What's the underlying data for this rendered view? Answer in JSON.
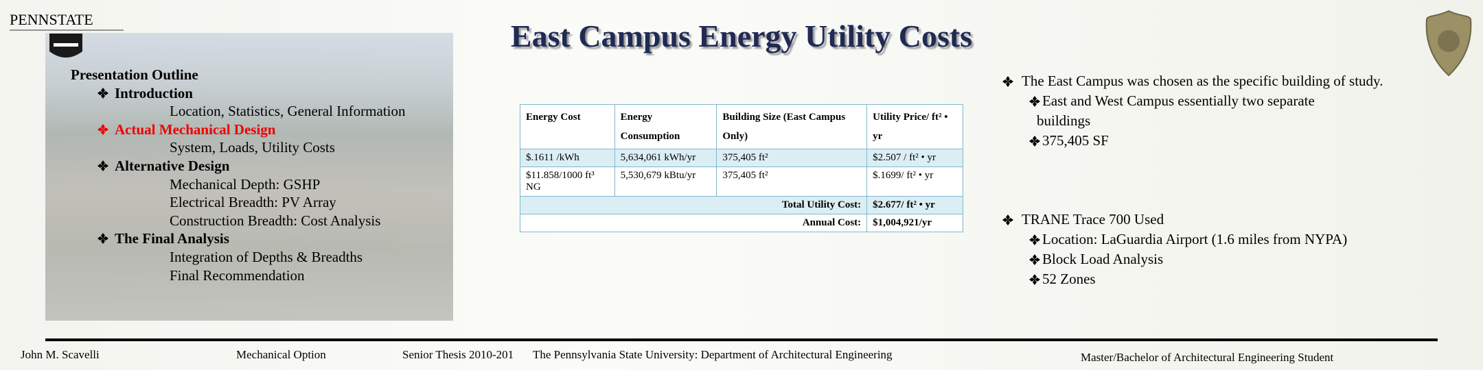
{
  "header": {
    "logo": "PENNSTATE",
    "title": "East Campus Energy Utility Costs"
  },
  "outline": {
    "heading": "Presentation Outline",
    "active_section": 1,
    "sections": [
      {
        "title": "Introduction",
        "items": [
          "Location, Statistics, General Information"
        ]
      },
      {
        "title": "Actual Mechanical Design",
        "items": [
          "System, Loads, Utility Costs"
        ]
      },
      {
        "title": "Alternative Design",
        "items": [
          "Mechanical Depth: GSHP",
          "Electrical Breadth: PV Array",
          "Construction Breadth: Cost Analysis"
        ]
      },
      {
        "title": "The Final Analysis",
        "items": [
          "Integration of Depths & Breadths",
          "Final Recommendation"
        ]
      }
    ]
  },
  "table": {
    "header": [
      "Energy Cost",
      "Energy Consumption",
      "Building Size (East Campus Only)",
      "Utility Price/ ft² • yr"
    ],
    "rows": [
      [
        "$.1611 /kWh",
        "5,634,061 kWh/yr",
        "375,405 ft²",
        "$2.507 / ft² • yr"
      ],
      [
        "$11.858/1000 ft³ NG",
        "5,530,679 kBtu/yr",
        "375,405 ft²",
        "$.1699/ ft² • yr"
      ]
    ],
    "totals": [
      [
        "Total Utility Cost:",
        "$2.677/ ft² • yr"
      ],
      [
        "Annual Cost:",
        "$1,004,921/yr"
      ]
    ]
  },
  "notes": [
    {
      "text": "The East Campus was chosen as the specific building of study.",
      "sub": [
        "East and West Campus essentially two separate buildings",
        "375,405 SF"
      ]
    },
    {
      "text": "TRANE Trace 700 Used",
      "sub": [
        "Location: LaGuardia Airport (1.6 miles from NYPA)",
        "Block Load Analysis",
        "52 Zones"
      ]
    }
  ],
  "footer": [
    "John M. Scavelli",
    "Mechanical Option",
    "Senior Thesis 2010-201",
    "The Pennsylvania State University: Department of Architectural Engineering",
    "Master/Bachelor of Architectural Engineering Student"
  ]
}
